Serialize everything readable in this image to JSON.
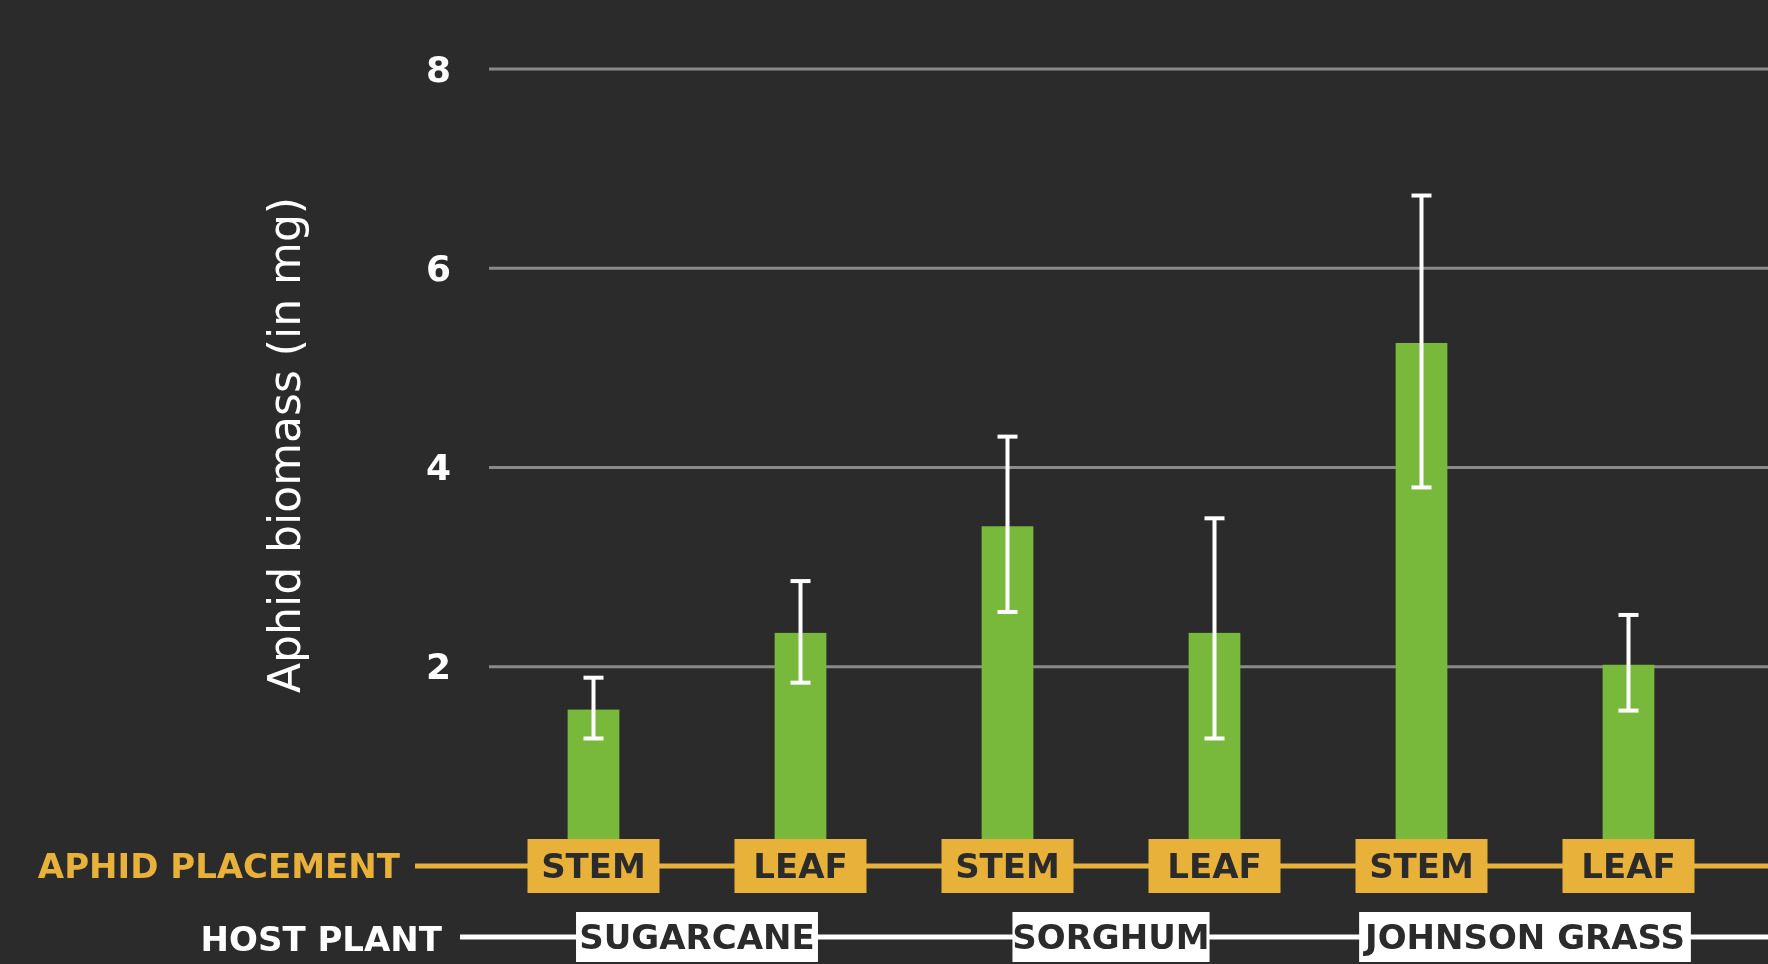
{
  "chart_data": {
    "type": "bar",
    "xlabel": "APHID PLACEMENT",
    "ylabel": "Aphid biomass (in mg)",
    "categories": [
      "STEM",
      "LEAF",
      "STEM",
      "LEAF",
      "STEM",
      "LEAF"
    ],
    "values": [
      1.57,
      2.34,
      3.41,
      2.34,
      5.25,
      2.02
    ],
    "errors": [
      [
        1.28,
        1.89
      ],
      [
        1.84,
        2.86
      ],
      [
        2.55,
        4.31
      ],
      [
        1.28,
        3.49
      ],
      [
        3.8,
        6.73
      ],
      [
        1.56,
        2.52
      ]
    ],
    "color": "#78b83a",
    "ylim": [
      0,
      8
    ],
    "yticks": [
      2,
      4,
      6,
      8
    ],
    "grid": "y",
    "annotations": [
      "HOST PLANT",
      "SUGARCANE",
      "SORGHUM",
      "JOHNSON GRASS"
    ]
  }
}
